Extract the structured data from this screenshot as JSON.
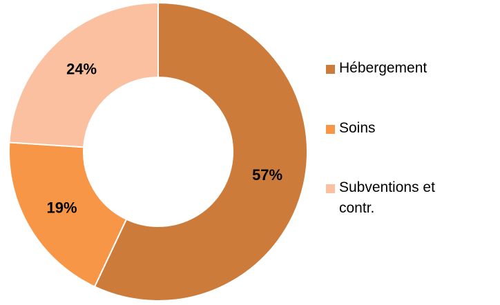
{
  "chart_data": {
    "type": "donut",
    "categories": [
      "Hébergement",
      "Soins",
      "Subventions et contr."
    ],
    "values": [
      57,
      19,
      24
    ],
    "value_labels": [
      "57%",
      "19%",
      "24%"
    ],
    "colors": [
      "#cd7b3a",
      "#f79646",
      "#fac0a0"
    ],
    "legend": "right"
  }
}
